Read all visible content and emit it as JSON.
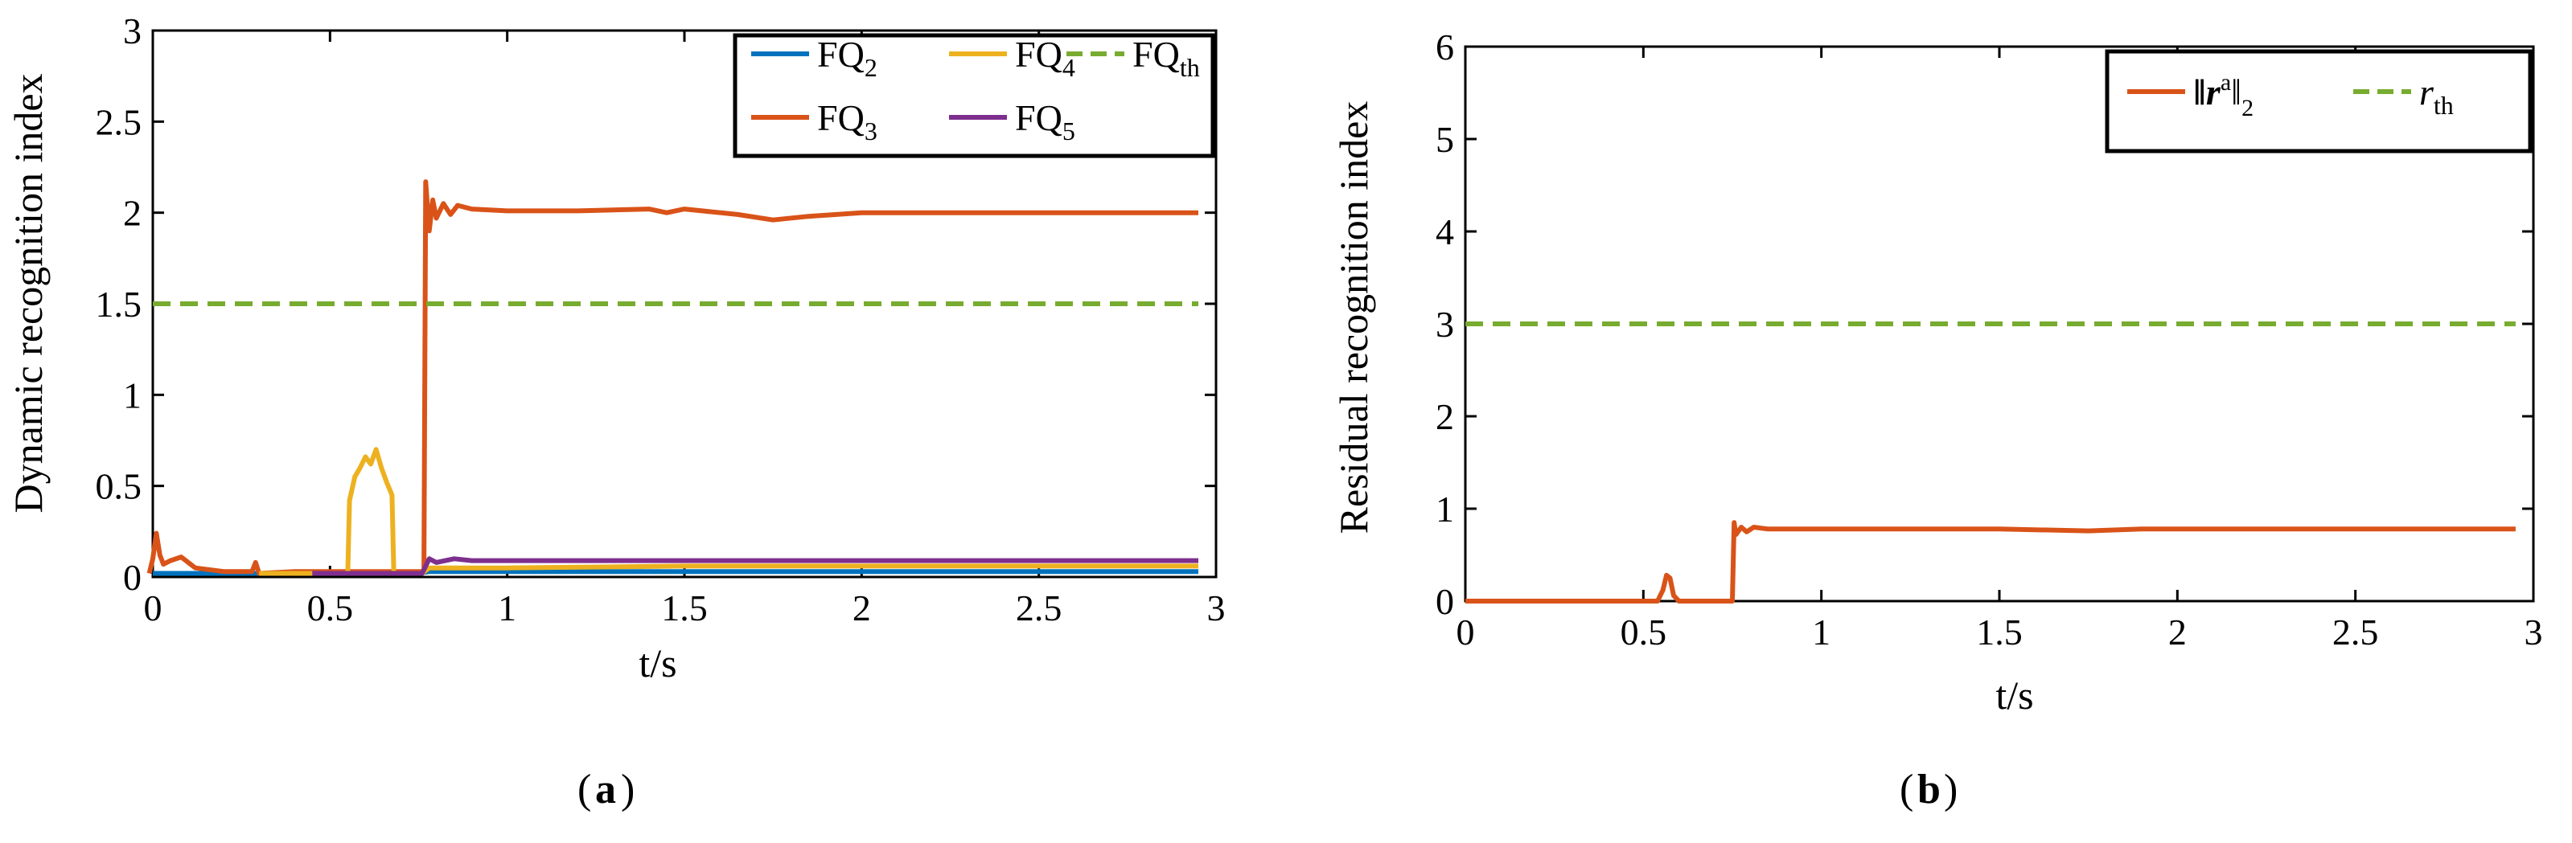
{
  "chart_data": [
    {
      "type": "line",
      "panel_label": "a",
      "xlabel": "t/s",
      "ylabel": "Dynamic recognition index",
      "xlim": [
        0,
        3
      ],
      "ylim": [
        0,
        3
      ],
      "xticks": [
        "0",
        "0.5",
        "1",
        "1.5",
        "2",
        "2.5",
        "3"
      ],
      "yticks": [
        "0",
        "0.5",
        "1",
        "1.5",
        "2",
        "2.5",
        "3"
      ],
      "grid": false,
      "legend_position": "top-right",
      "series": [
        {
          "name": "FQ",
          "sub": "2",
          "color": "#0072BD",
          "style": "solid",
          "x": [
            0,
            0.05,
            0.3,
            0.75,
            0.78,
            1.0,
            1.5,
            2.0,
            2.5,
            2.95
          ],
          "y": [
            0.02,
            0.02,
            0.02,
            0.02,
            0.03,
            0.03,
            0.03,
            0.03,
            0.03,
            0.03
          ]
        },
        {
          "name": "FQ",
          "sub": "3",
          "color": "#D95319",
          "style": "solid",
          "x": [
            -0.01,
            0.0,
            0.01,
            0.02,
            0.03,
            0.05,
            0.08,
            0.12,
            0.2,
            0.28,
            0.29,
            0.3,
            0.4,
            0.5,
            0.6,
            0.7,
            0.765,
            0.77,
            0.78,
            0.79,
            0.8,
            0.82,
            0.84,
            0.86,
            0.9,
            1.0,
            1.2,
            1.4,
            1.45,
            1.5,
            1.55,
            1.65,
            1.75,
            1.85,
            2.0,
            2.5,
            2.95
          ],
          "y": [
            0.02,
            0.1,
            0.24,
            0.12,
            0.07,
            0.09,
            0.11,
            0.05,
            0.03,
            0.03,
            0.08,
            0.02,
            0.03,
            0.03,
            0.03,
            0.03,
            0.03,
            2.17,
            1.9,
            2.07,
            1.97,
            2.05,
            1.99,
            2.04,
            2.02,
            2.01,
            2.01,
            2.02,
            2.0,
            2.02,
            2.01,
            1.99,
            1.96,
            1.98,
            2.0,
            2.0,
            2.0
          ]
        },
        {
          "name": "FQ",
          "sub": "4",
          "color": "#EDB120",
          "style": "solid",
          "x": [
            0.3,
            0.55,
            0.555,
            0.57,
            0.585,
            0.6,
            0.615,
            0.63,
            0.645,
            0.66,
            0.675,
            0.68,
            0.76,
            0.78,
            1.0,
            1.5,
            2.0,
            2.5,
            2.95
          ],
          "y": [
            0.02,
            0.02,
            0.42,
            0.55,
            0.6,
            0.66,
            0.62,
            0.7,
            0.6,
            0.52,
            0.45,
            0.02,
            0.02,
            0.05,
            0.05,
            0.06,
            0.06,
            0.06,
            0.06
          ]
        },
        {
          "name": "FQ",
          "sub": "5",
          "color": "#7E2F8E",
          "style": "solid",
          "x": [
            0.45,
            0.7,
            0.76,
            0.78,
            0.8,
            0.85,
            0.9,
            1.0,
            1.5,
            2.0,
            2.5,
            2.95
          ],
          "y": [
            0.02,
            0.02,
            0.02,
            0.1,
            0.08,
            0.1,
            0.09,
            0.09,
            0.09,
            0.09,
            0.09,
            0.09
          ]
        },
        {
          "name": "FQ",
          "sub": "th",
          "color": "#77AC30",
          "style": "dashed",
          "x": [
            0,
            2.95
          ],
          "y": [
            1.5,
            1.5
          ]
        }
      ],
      "legend_order": [
        0,
        2,
        4,
        1,
        3
      ]
    },
    {
      "type": "line",
      "panel_label": "b",
      "xlabel": "t/s",
      "ylabel": "Residual recognition index",
      "xlim": [
        0,
        3
      ],
      "ylim": [
        0,
        6
      ],
      "xticks": [
        "0",
        "0.5",
        "1",
        "1.5",
        "2",
        "2.5",
        "3"
      ],
      "yticks": [
        "0",
        "1",
        "2",
        "3",
        "4",
        "5",
        "6"
      ],
      "grid": false,
      "legend_position": "top-right",
      "series": [
        {
          "name": "‖r",
          "sup": "a",
          "name_close": "‖",
          "sub": "2",
          "color": "#D95319",
          "style": "solid",
          "x": [
            0,
            0.54,
            0.555,
            0.565,
            0.575,
            0.585,
            0.6,
            0.61,
            0.75,
            0.755,
            0.76,
            0.775,
            0.79,
            0.81,
            0.85,
            1.0,
            1.5,
            1.75,
            1.9,
            2.0,
            2.5,
            2.95
          ],
          "y": [
            0,
            0,
            0.12,
            0.28,
            0.25,
            0.06,
            0,
            0,
            0,
            0.85,
            0.72,
            0.8,
            0.75,
            0.8,
            0.78,
            0.78,
            0.78,
            0.76,
            0.78,
            0.78,
            0.78,
            0.78
          ]
        },
        {
          "name": "r",
          "sub": "th",
          "color": "#77AC30",
          "style": "dashed",
          "x": [
            0,
            2.95
          ],
          "y": [
            3,
            3
          ]
        }
      ]
    }
  ]
}
